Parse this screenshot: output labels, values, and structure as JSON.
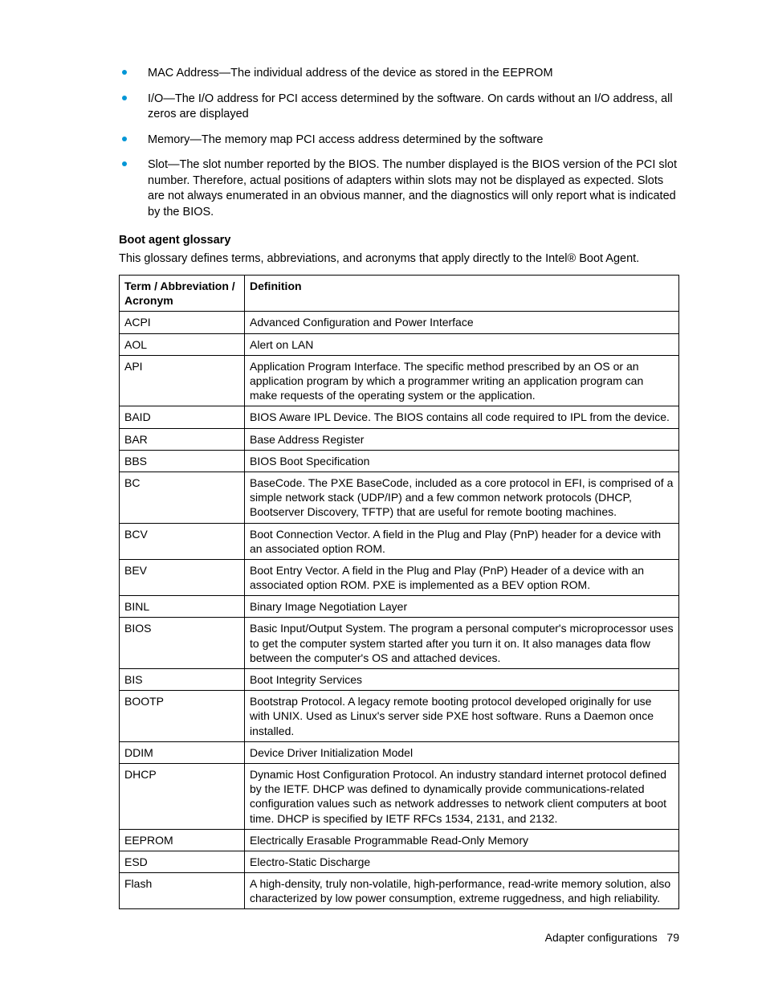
{
  "colors": {
    "bullet": "#0096d6",
    "text": "#000000",
    "background": "#ffffff",
    "border": "#000000"
  },
  "bullets": [
    "MAC Address—The individual address of the device as stored in the EEPROM",
    "I/O—The I/O address for PCI access determined by the software. On cards without an I/O address, all zeros are displayed",
    "Memory—The memory map PCI access address determined by the software",
    "Slot—The slot number reported by the BIOS. The number displayed is the BIOS version of the PCI slot number. Therefore, actual positions of adapters within slots may not be displayed as expected. Slots are not always enumerated in an obvious manner, and the diagnostics will only report what is indicated by the BIOS."
  ],
  "heading": "Boot agent glossary",
  "intro": "This glossary defines terms, abbreviations, and acronyms that apply directly to the Intel® Boot Agent.",
  "table": {
    "headers": [
      "Term / Abbreviation / Acronym",
      "Definition"
    ],
    "rows": [
      [
        "ACPI",
        "Advanced Configuration and Power Interface"
      ],
      [
        "AOL",
        "Alert on LAN"
      ],
      [
        "API",
        "Application Program Interface. The specific method prescribed by an OS or an application program by which a programmer writing an application program can make requests of the operating system or the application."
      ],
      [
        "BAID",
        "BIOS Aware IPL Device. The BIOS contains all code required to IPL from the device."
      ],
      [
        "BAR",
        "Base Address Register"
      ],
      [
        "BBS",
        "BIOS Boot Specification"
      ],
      [
        "BC",
        "BaseCode. The PXE BaseCode, included as a core protocol in EFI, is comprised of a simple network stack (UDP/IP) and a few common network protocols (DHCP, Bootserver Discovery, TFTP) that are useful for remote booting machines."
      ],
      [
        "BCV",
        "Boot Connection Vector. A field in the Plug and Play (PnP) header for a device with an associated option ROM."
      ],
      [
        "BEV",
        "Boot Entry Vector. A field in the Plug and Play (PnP) Header of a device with an associated option ROM. PXE is implemented as a BEV option ROM."
      ],
      [
        "BINL",
        "Binary Image Negotiation Layer"
      ],
      [
        "BIOS",
        "Basic Input/Output System. The program a personal computer's microprocessor uses to get the computer system started after you turn it on. It also manages data flow between the computer's OS and attached devices."
      ],
      [
        "BIS",
        "Boot Integrity Services"
      ],
      [
        "BOOTP",
        "Bootstrap Protocol. A legacy remote booting protocol developed originally for use with UNIX. Used as Linux's server side PXE host software. Runs a Daemon once installed."
      ],
      [
        "DDIM",
        "Device Driver Initialization Model"
      ],
      [
        "DHCP",
        "Dynamic Host Configuration Protocol. An industry standard internet protocol defined by the IETF. DHCP was defined to dynamically provide communications-related configuration values such as network addresses to network client computers at boot time. DHCP is specified by IETF RFCs 1534, 2131, and 2132."
      ],
      [
        "EEPROM",
        "Electrically Erasable Programmable Read-Only Memory"
      ],
      [
        "ESD",
        "Electro-Static Discharge"
      ],
      [
        "Flash",
        "A high-density, truly non-volatile, high-performance, read-write memory solution, also characterized by low power consumption, extreme ruggedness, and high reliability."
      ]
    ]
  },
  "footer": {
    "section": "Adapter configurations",
    "page": "79"
  }
}
